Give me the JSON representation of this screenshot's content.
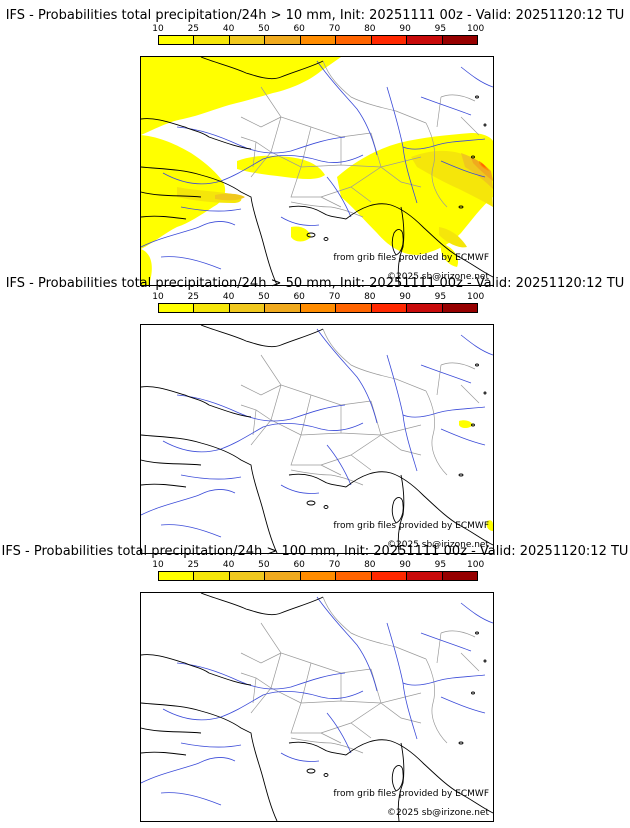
{
  "colors": {
    "scale": [
      "#ffff00",
      "#f5e60a",
      "#f0c81e",
      "#f0aa1e",
      "#ff8c00",
      "#ff6400",
      "#ff2800",
      "#c80a0a",
      "#960000",
      "#640000"
    ],
    "river": "#3b4bd8",
    "border": "#9a9a9a",
    "coast": "#000000"
  },
  "colorbar": {
    "ticks": [
      "10",
      "25",
      "40",
      "50",
      "60",
      "70",
      "80",
      "90",
      "95",
      "100"
    ]
  },
  "panels": [
    {
      "title": "IFS - Probabilities total precipitation/24h > 10 mm, Init: 20251111 00z - Valid: 20251120:12 TU",
      "threshold_mm": 10,
      "coverage": "wide",
      "credit_grib": "from grib files provided by ECMWF",
      "credit_copy": "©2025 sb@irizone.net"
    },
    {
      "title": "IFS - Probabilities total precipitation/24h > 50 mm, Init: 20251111 00z - Valid: 20251120:12 TU",
      "threshold_mm": 50,
      "coverage": "sparse",
      "credit_grib": "from grib files provided by ECMWF",
      "credit_copy": "©2025 sb@irizone.net"
    },
    {
      "title": "IFS - Probabilities total precipitation/24h > 100 mm, Init: 20251111 00z - Valid: 20251120:12 TU",
      "threshold_mm": 100,
      "coverage": "none",
      "credit_grib": "from grib files provided by ECMWF",
      "credit_copy": "©2025 sb@irizone.net"
    }
  ]
}
